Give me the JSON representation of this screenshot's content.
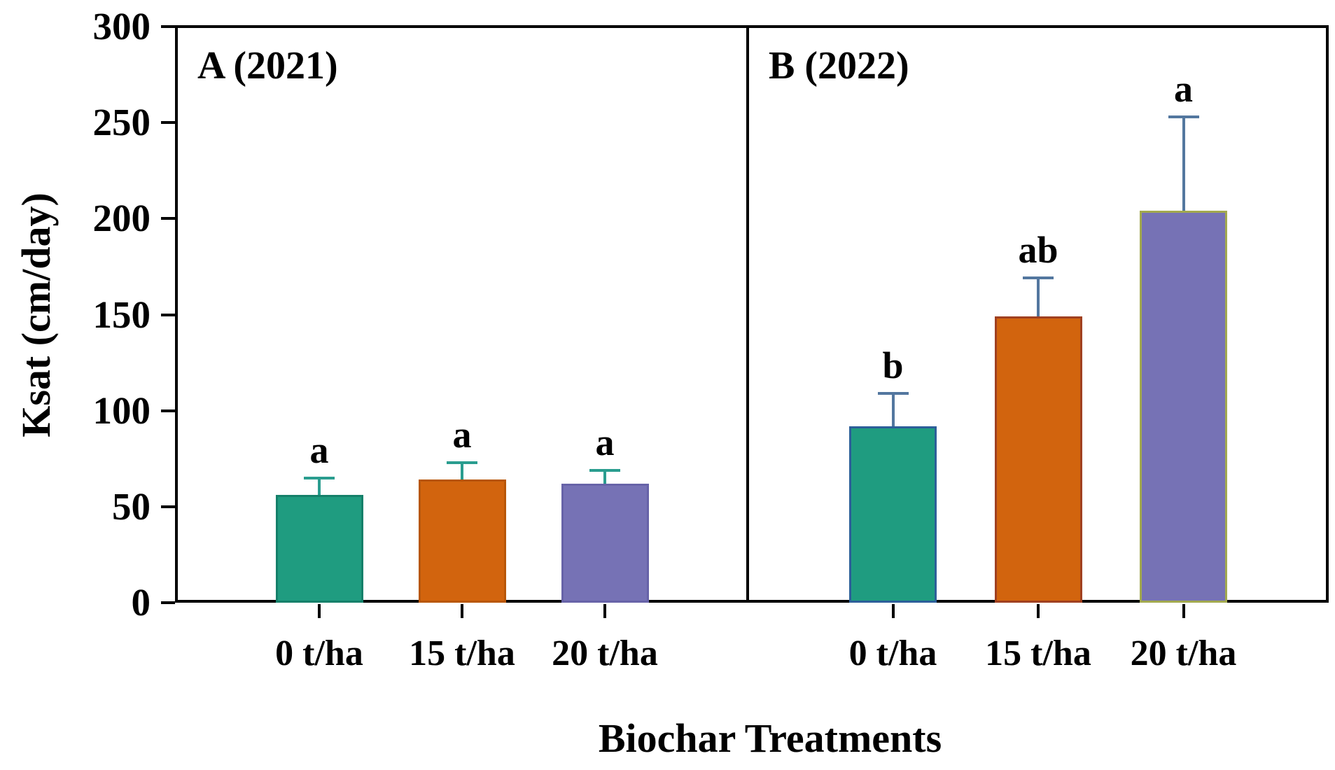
{
  "chart_data": {
    "type": "bar",
    "title": "",
    "ylabel": "Ksat (cm/day)",
    "xlabel": "Biochar Treatments",
    "ylim": [
      0,
      300
    ],
    "yticks": [
      0,
      50,
      100,
      150,
      200,
      250,
      300
    ],
    "categories": [
      "0 t/ha",
      "15 t/ha",
      "20 t/ha"
    ],
    "grid": "off",
    "legend": "none",
    "panels": [
      {
        "label": "A (2021)",
        "bars": [
          {
            "category": "0 t/ha",
            "value": 56,
            "error": 9,
            "sig_letter": "a",
            "fill": "#1f9c80",
            "border": "#15806a",
            "error_color": "#2a9d8f"
          },
          {
            "category": "15 t/ha",
            "value": 64,
            "error": 9,
            "sig_letter": "a",
            "fill": "#d2640e",
            "border": "#b85608",
            "error_color": "#2a9d8f"
          },
          {
            "category": "20 t/ha",
            "value": 62,
            "error": 7,
            "sig_letter": "a",
            "fill": "#7672b5",
            "border": "#6763a8",
            "error_color": "#2a9d8f"
          }
        ]
      },
      {
        "label": "B (2022)",
        "bars": [
          {
            "category": "0 t/ha",
            "value": 92,
            "error": 17,
            "sig_letter": "b",
            "fill": "#1f9c80",
            "border": "#2d5f99",
            "error_color": "#53779f"
          },
          {
            "category": "15 t/ha",
            "value": 149,
            "error": 20,
            "sig_letter": "ab",
            "fill": "#d2640e",
            "border": "#a04020",
            "error_color": "#53779f"
          },
          {
            "category": "20 t/ha",
            "value": 204,
            "error": 49,
            "sig_letter": "a",
            "fill": "#7672b5",
            "border": "#a2a94f",
            "error_color": "#53779f"
          }
        ]
      }
    ],
    "colors": {
      "bar_teal": "#1f9c80",
      "bar_orange": "#d2640e",
      "bar_purple": "#7672b5",
      "errorbar_panel_a": "#2a9d8f",
      "errorbar_panel_b": "#53779f",
      "axis": "#000000"
    }
  }
}
